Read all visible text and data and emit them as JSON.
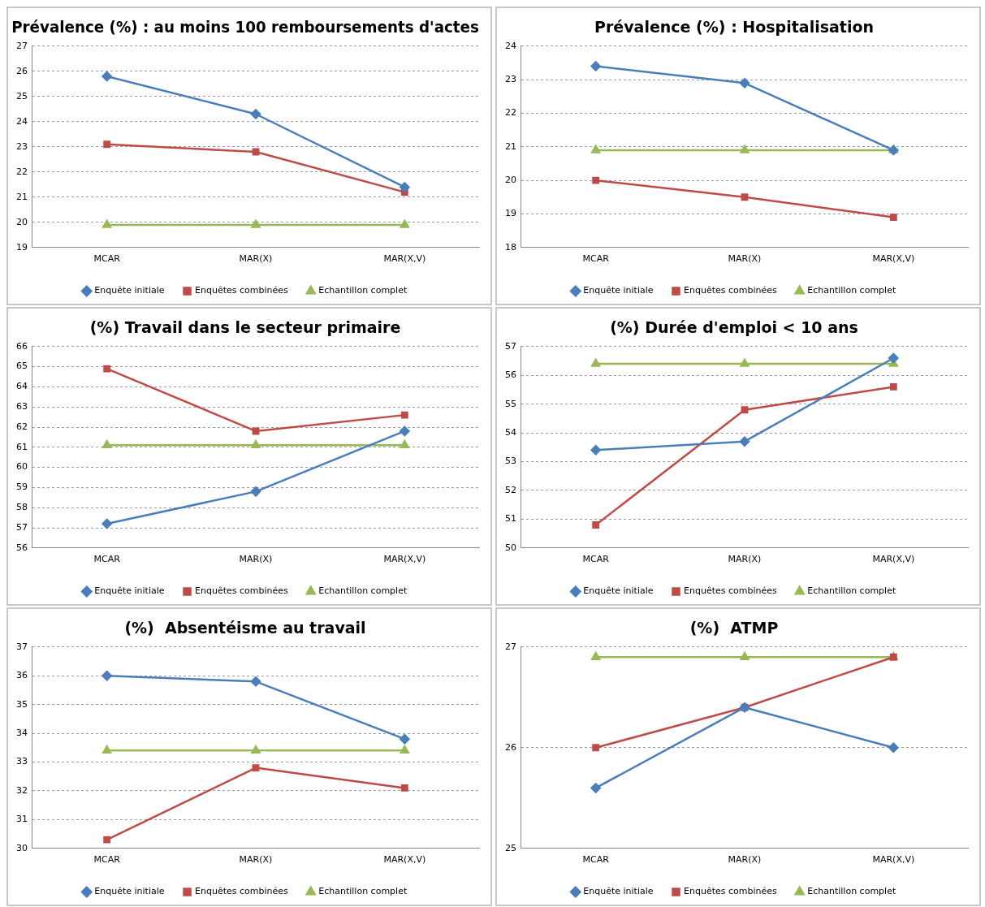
{
  "chart_data": [
    {
      "type": "line",
      "title": "Prévalence (%) : au moins 100 remboursements d'actes",
      "categories": [
        "MCAR",
        "MAR(X)",
        "MAR(X,V)"
      ],
      "ylim": [
        19,
        27
      ],
      "yticks": [
        19,
        20,
        21,
        22,
        23,
        24,
        25,
        26,
        27
      ],
      "grid": "y",
      "legend": "bottom",
      "series": [
        {
          "name": "Enquête initiale",
          "color": "#4a7ebb",
          "marker": "diamond",
          "values": [
            25.8,
            24.3,
            21.4
          ]
        },
        {
          "name": "Enquêtes combinées",
          "color": "#be4b48",
          "marker": "square",
          "values": [
            23.1,
            22.8,
            21.2
          ]
        },
        {
          "name": "Echantillon complet",
          "color": "#98b954",
          "marker": "triangle",
          "values": [
            19.9,
            19.9,
            19.9
          ]
        }
      ]
    },
    {
      "type": "line",
      "title": "Prévalence (%) : Hospitalisation",
      "categories": [
        "MCAR",
        "MAR(X)",
        "MAR(X,V)"
      ],
      "ylim": [
        18,
        24
      ],
      "yticks": [
        18,
        19,
        20,
        21,
        22,
        23,
        24
      ],
      "grid": "y",
      "legend": "bottom",
      "series": [
        {
          "name": "Enquête initiale",
          "color": "#4a7ebb",
          "marker": "diamond",
          "values": [
            23.4,
            22.9,
            20.9
          ]
        },
        {
          "name": "Enquêtes combinées",
          "color": "#be4b48",
          "marker": "square",
          "values": [
            20.0,
            19.5,
            18.9
          ]
        },
        {
          "name": "Echantillon complet",
          "color": "#98b954",
          "marker": "triangle",
          "values": [
            20.9,
            20.9,
            20.9
          ]
        }
      ]
    },
    {
      "type": "line",
      "title": "(%) Travail dans le secteur primaire",
      "categories": [
        "MCAR",
        "MAR(X)",
        "MAR(X,V)"
      ],
      "ylim": [
        56,
        66
      ],
      "yticks": [
        56,
        57,
        58,
        59,
        60,
        61,
        62,
        63,
        64,
        65,
        66
      ],
      "grid": "y",
      "legend": "bottom",
      "series": [
        {
          "name": "Enquête initiale",
          "color": "#4a7ebb",
          "marker": "diamond",
          "values": [
            57.2,
            58.8,
            61.8
          ]
        },
        {
          "name": "Enquêtes combinées",
          "color": "#be4b48",
          "marker": "square",
          "values": [
            64.9,
            61.8,
            62.6
          ]
        },
        {
          "name": "Echantillon complet",
          "color": "#98b954",
          "marker": "triangle",
          "values": [
            61.1,
            61.1,
            61.1
          ]
        }
      ]
    },
    {
      "type": "line",
      "title": "(%) Durée d'emploi < 10 ans",
      "categories": [
        "MCAR",
        "MAR(X)",
        "MAR(X,V)"
      ],
      "ylim": [
        50,
        57
      ],
      "yticks": [
        50,
        51,
        52,
        53,
        54,
        55,
        56,
        57
      ],
      "grid": "y",
      "legend": "bottom",
      "series": [
        {
          "name": "Enquête initiale",
          "color": "#4a7ebb",
          "marker": "diamond",
          "values": [
            53.4,
            53.7,
            56.6
          ]
        },
        {
          "name": "Enquêtes combinées",
          "color": "#be4b48",
          "marker": "square",
          "values": [
            50.8,
            54.8,
            55.6
          ]
        },
        {
          "name": "Echantillon complet",
          "color": "#98b954",
          "marker": "triangle",
          "values": [
            56.4,
            56.4,
            56.4
          ]
        }
      ]
    },
    {
      "type": "line",
      "title": "(%)  Absentéisme au travail",
      "categories": [
        "MCAR",
        "MAR(X)",
        "MAR(X,V)"
      ],
      "ylim": [
        30,
        37
      ],
      "yticks": [
        30,
        31,
        32,
        33,
        34,
        35,
        36,
        37
      ],
      "grid": "y",
      "legend": "bottom",
      "series": [
        {
          "name": "Enquête initiale",
          "color": "#4a7ebb",
          "marker": "diamond",
          "values": [
            36.0,
            35.8,
            33.8
          ]
        },
        {
          "name": "Enquêtes combinées",
          "color": "#be4b48",
          "marker": "square",
          "values": [
            30.3,
            32.8,
            32.1
          ]
        },
        {
          "name": "Echantillon complet",
          "color": "#98b954",
          "marker": "triangle",
          "values": [
            33.4,
            33.4,
            33.4
          ]
        }
      ]
    },
    {
      "type": "line",
      "title": "(%)  ATMP",
      "categories": [
        "MCAR",
        "MAR(X)",
        "MAR(X,V)"
      ],
      "ylim": [
        25,
        27
      ],
      "yticks": [
        25,
        26,
        27
      ],
      "grid": "y",
      "legend": "bottom",
      "series": [
        {
          "name": "Enquête initiale",
          "color": "#4a7ebb",
          "marker": "diamond",
          "values": [
            25.6,
            26.4,
            26.0
          ]
        },
        {
          "name": "Enquêtes combinées",
          "color": "#be4b48",
          "marker": "square",
          "values": [
            26.0,
            26.4,
            26.9
          ]
        },
        {
          "name": "Echantillon complet",
          "color": "#98b954",
          "marker": "triangle",
          "values": [
            26.9,
            26.9,
            26.9
          ]
        }
      ]
    }
  ]
}
